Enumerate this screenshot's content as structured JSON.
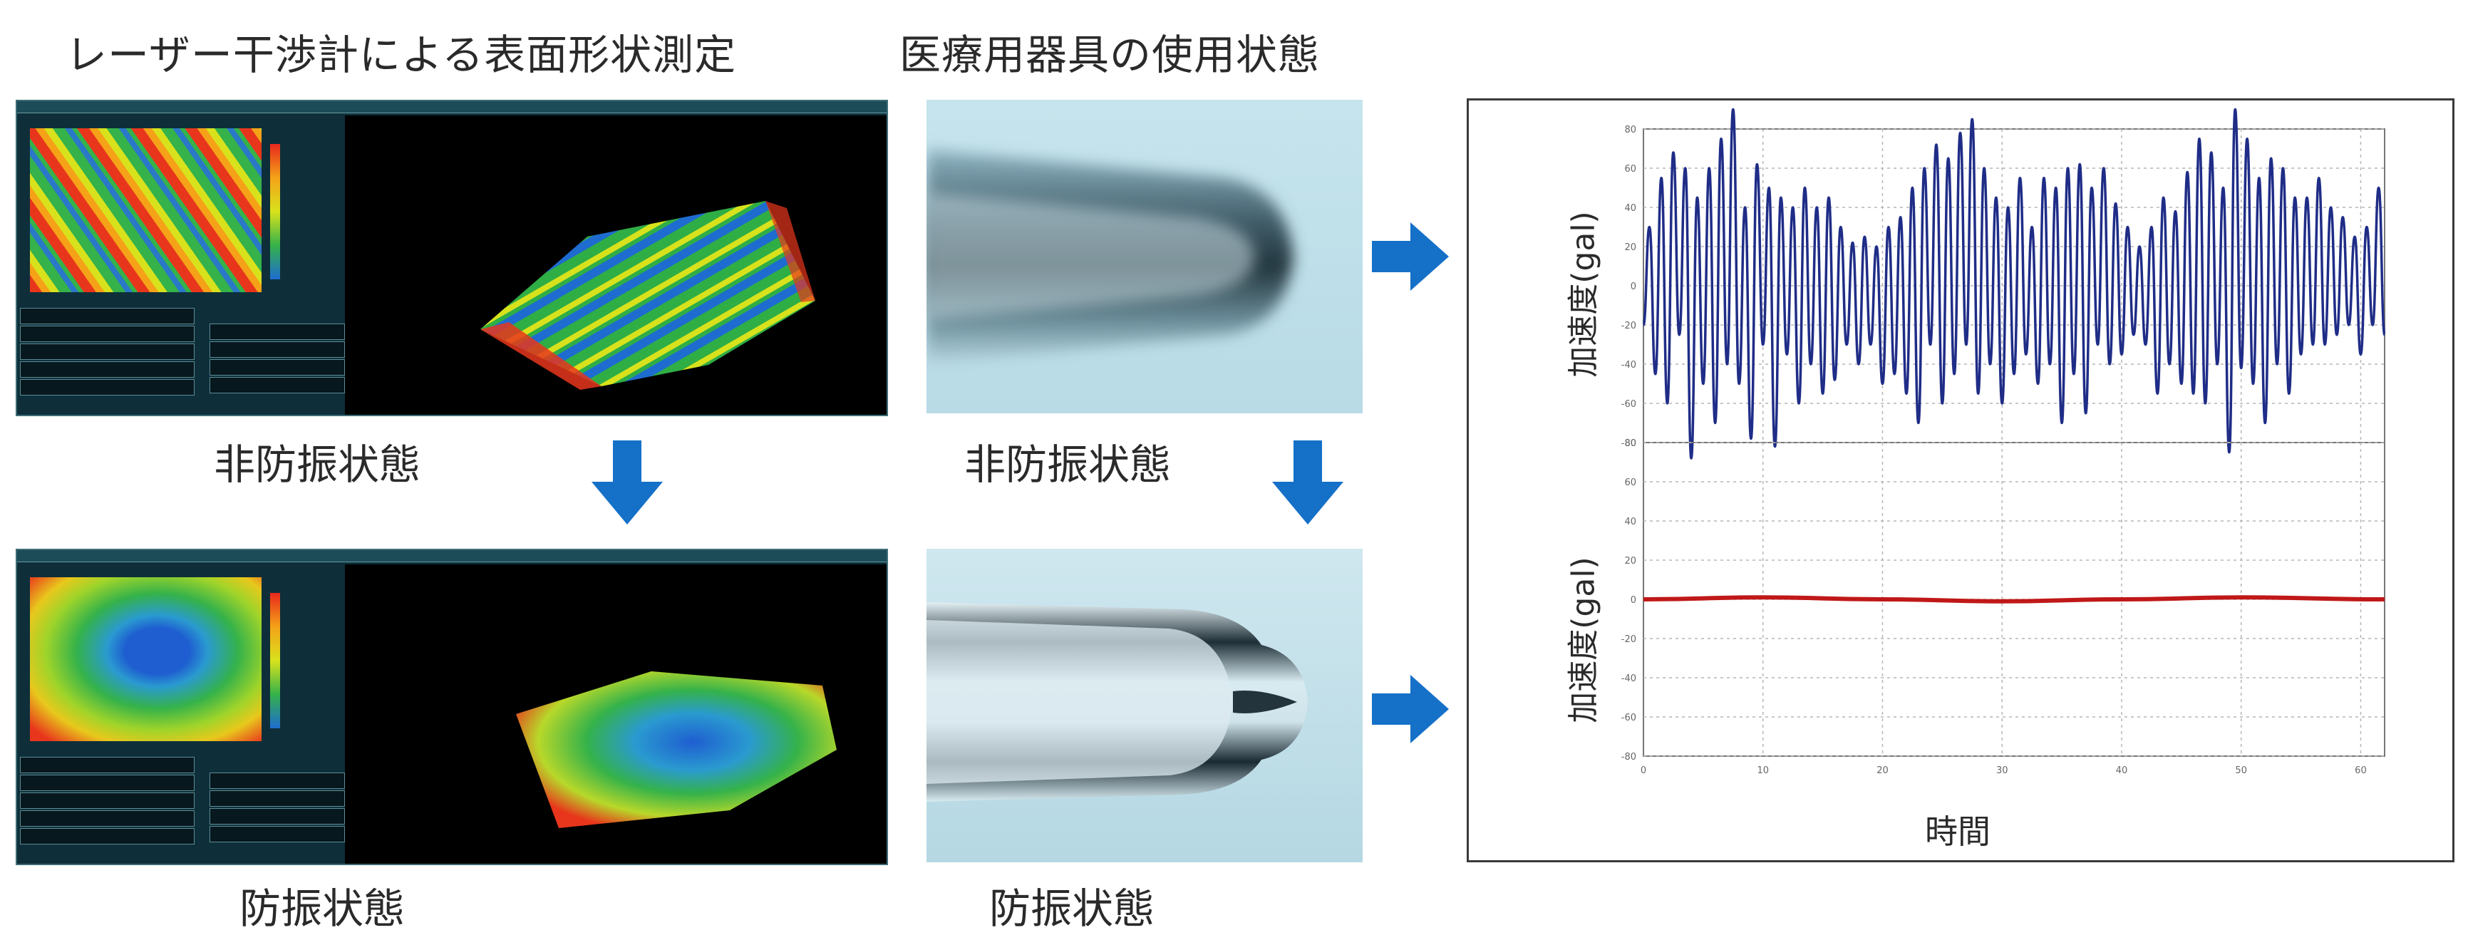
{
  "headings": {
    "laser": "レーザー干渉計による表面形状測定",
    "medical": "医療用器具の使用状態"
  },
  "captions": {
    "top_left": "非防振状態",
    "top_right": "非防振状態",
    "bottom_left": "防振状態",
    "bottom_right": "防振状態"
  },
  "chart_data": [
    {
      "type": "line",
      "title": "",
      "xlabel": "",
      "ylabel": "加速度(gal)",
      "xlim": [
        0,
        62
      ],
      "ylim": [
        -80,
        80
      ],
      "grid": true,
      "series": [
        {
          "color": "#1f2d87",
          "x": [
            0,
            0.5,
            1,
            1.5,
            2,
            2.5,
            3,
            3.5,
            4,
            4.5,
            5,
            5.5,
            6,
            6.5,
            7,
            7.5,
            8,
            8.5,
            9,
            9.5,
            10,
            10.5,
            11,
            11.5,
            12,
            12.5,
            13,
            13.5,
            14,
            14.5,
            15,
            15.5,
            16,
            16.5,
            17,
            17.5,
            18,
            18.5,
            19,
            19.5,
            20,
            20.5,
            21,
            21.5,
            22,
            22.5,
            23,
            23.5,
            24,
            24.5,
            25,
            25.5,
            26,
            26.5,
            27,
            27.5,
            28,
            28.5,
            29,
            29.5,
            30,
            30.5,
            31,
            31.5,
            32,
            32.5,
            33,
            33.5,
            34,
            34.5,
            35,
            35.5,
            36,
            36.5,
            37,
            37.5,
            38,
            38.5,
            39,
            39.5,
            40,
            40.5,
            41,
            41.5,
            42,
            42.5,
            43,
            43.5,
            44,
            44.5,
            45,
            45.5,
            46,
            46.5,
            47,
            47.5,
            48,
            48.5,
            49,
            49.5,
            50,
            50.5,
            51,
            51.5,
            52,
            52.5,
            53,
            53.5,
            54,
            54.5,
            55,
            55.5,
            56,
            56.5,
            57,
            57.5,
            58,
            58.5,
            59,
            59.5,
            60,
            60.5,
            61,
            61.5,
            62
          ],
          "y": [
            -20,
            30,
            -45,
            55,
            -60,
            68,
            -25,
            60,
            -88,
            45,
            -50,
            60,
            -70,
            75,
            -40,
            90,
            -50,
            40,
            -78,
            62,
            -30,
            50,
            -82,
            45,
            -35,
            40,
            -60,
            50,
            -40,
            40,
            -55,
            45,
            -48,
            30,
            -30,
            22,
            -40,
            25,
            -30,
            20,
            -50,
            30,
            -45,
            35,
            -55,
            50,
            -70,
            60,
            -30,
            72,
            -60,
            65,
            -45,
            78,
            -30,
            85,
            -55,
            60,
            -40,
            45,
            -60,
            40,
            -45,
            55,
            -35,
            30,
            -50,
            55,
            -40,
            50,
            -70,
            60,
            -45,
            62,
            -65,
            50,
            -30,
            60,
            -40,
            42,
            -35,
            30,
            -25,
            20,
            -30,
            30,
            -55,
            45,
            -40,
            38,
            -50,
            58,
            -55,
            75,
            -60,
            68,
            -40,
            50,
            -85,
            90,
            -42,
            75,
            -50,
            55,
            -70,
            65,
            -40,
            60,
            -55,
            45,
            -35,
            45,
            -30,
            55,
            -30,
            40,
            -25,
            35,
            -20,
            25,
            -35,
            30,
            -20,
            50,
            -25
          ]
        }
      ],
      "yticks": [
        "80",
        "60",
        "40",
        "20",
        "0",
        "-20",
        "-40",
        "-60",
        "-80"
      ]
    },
    {
      "type": "line",
      "title": "",
      "xlabel": "時間",
      "ylabel": "加速度(gal)",
      "xlim": [
        0,
        62
      ],
      "ylim": [
        -80,
        80
      ],
      "grid": true,
      "series": [
        {
          "color": "#c01818",
          "x": [
            0,
            10,
            20,
            30,
            40,
            50,
            62
          ],
          "y": [
            0,
            1,
            0,
            -1,
            0,
            1,
            0
          ]
        }
      ],
      "xticks": [
        "0",
        "10",
        "20",
        "30",
        "40",
        "50",
        "60"
      ],
      "yticks": [
        "80",
        "60",
        "40",
        "20",
        "0",
        "-20",
        "-40",
        "-60",
        "-80"
      ]
    }
  ]
}
